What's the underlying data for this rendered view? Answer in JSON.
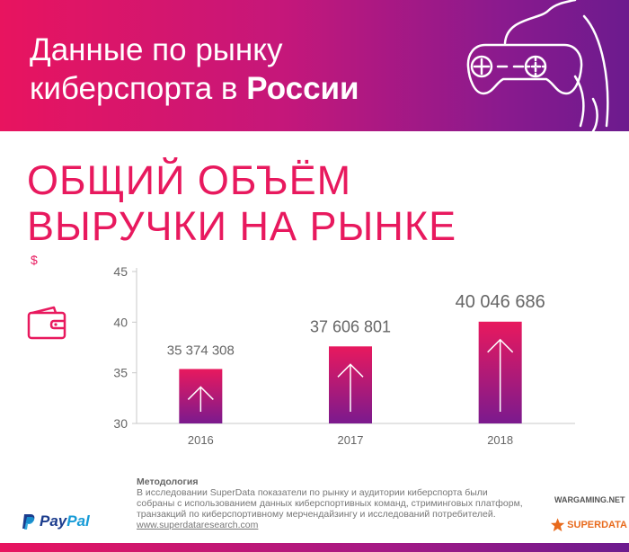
{
  "header": {
    "title_line1": "Данные по рынку",
    "title_line2_prefix": "киберспорта в ",
    "title_line2_bold": "России"
  },
  "section": {
    "title_line1": "ОБЩИЙ ОБЪЁМ",
    "title_line2": "ВЫРУЧКИ НА РЫНКЕ",
    "currency": "$"
  },
  "icons": {
    "header": "gamepad-icon",
    "section": "wallet-icon"
  },
  "chart_data": {
    "type": "bar",
    "categories": [
      "2016",
      "2017",
      "2018"
    ],
    "values": [
      35374308,
      37606801,
      40046686
    ],
    "data_labels": [
      "35 374 308",
      "37 606 801",
      "40 046 686"
    ],
    "ylim": [
      30,
      45
    ],
    "y_ticks": [
      "30",
      "35",
      "40",
      "45"
    ],
    "grid": false,
    "colors": {
      "bar_top": "#e8195e",
      "bar_bottom": "#7b1a8e",
      "axis": "#c8c8c8",
      "text": "#666666"
    }
  },
  "methodology": {
    "title": "Методология",
    "text": "В исследовании SuperData показатели по рынку и аудитории киберспорта были собраны с использованием данных киберспортивных команд, стриминговых платформ, транзакций по киберспортивному мерчендайзингу и исследований потребителей.",
    "link": "www.superdataresearch.com"
  },
  "logos": {
    "paypal_left": "Pay",
    "paypal_right": "Pal",
    "wargaming": "WARGAMING.NET",
    "superdata": "SUPERDATA"
  }
}
